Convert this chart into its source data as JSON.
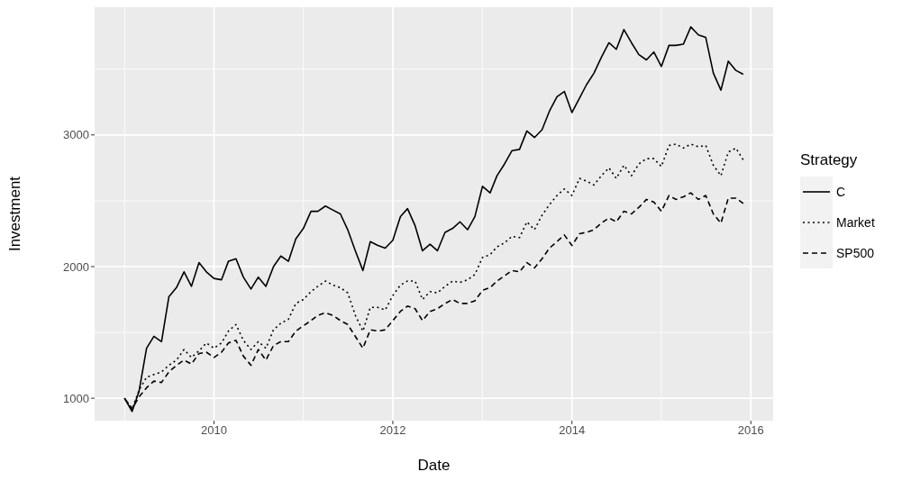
{
  "chart_data": {
    "type": "line",
    "xlabel": "Date",
    "ylabel": "Investment",
    "legend_title": "Strategy",
    "legend": "right",
    "grid": true,
    "xlim": [
      "2008-09",
      "2016-04"
    ],
    "ylim": [
      830,
      3970
    ],
    "xticks": [
      "2010",
      "2012",
      "2014",
      "2016"
    ],
    "yticks": [
      1000,
      2000,
      3000
    ],
    "x": [
      "2009-01",
      "2009-02",
      "2009-03",
      "2009-04",
      "2009-05",
      "2009-06",
      "2009-07",
      "2009-08",
      "2009-09",
      "2009-10",
      "2009-11",
      "2009-12",
      "2010-01",
      "2010-02",
      "2010-03",
      "2010-04",
      "2010-05",
      "2010-06",
      "2010-07",
      "2010-08",
      "2010-09",
      "2010-10",
      "2010-11",
      "2010-12",
      "2011-01",
      "2011-02",
      "2011-03",
      "2011-04",
      "2011-05",
      "2011-06",
      "2011-07",
      "2011-08",
      "2011-09",
      "2011-10",
      "2011-11",
      "2011-12",
      "2012-01",
      "2012-02",
      "2012-03",
      "2012-04",
      "2012-05",
      "2012-06",
      "2012-07",
      "2012-08",
      "2012-09",
      "2012-10",
      "2012-11",
      "2012-12",
      "2013-01",
      "2013-02",
      "2013-03",
      "2013-04",
      "2013-05",
      "2013-06",
      "2013-07",
      "2013-08",
      "2013-09",
      "2013-10",
      "2013-11",
      "2013-12",
      "2014-01",
      "2014-02",
      "2014-03",
      "2014-04",
      "2014-05",
      "2014-06",
      "2014-07",
      "2014-08",
      "2014-09",
      "2014-10",
      "2014-11",
      "2014-12",
      "2015-01",
      "2015-02",
      "2015-03",
      "2015-04",
      "2015-05",
      "2015-06",
      "2015-07",
      "2015-08",
      "2015-09",
      "2015-10",
      "2015-11",
      "2015-12"
    ],
    "series": [
      {
        "name": "C",
        "color": "#000000",
        "line_style": "solid",
        "values": [
          1000,
          900,
          1050,
          1380,
          1470,
          1430,
          1770,
          1840,
          1960,
          1850,
          2030,
          1960,
          1910,
          1900,
          2040,
          2060,
          1920,
          1830,
          1920,
          1850,
          2000,
          2080,
          2040,
          2210,
          2290,
          2420,
          2420,
          2460,
          2430,
          2400,
          2280,
          2120,
          1970,
          2190,
          2160,
          2140,
          2200,
          2380,
          2440,
          2310,
          2120,
          2170,
          2120,
          2260,
          2290,
          2340,
          2280,
          2380,
          2610,
          2560,
          2690,
          2780,
          2880,
          2890,
          3030,
          2980,
          3040,
          3180,
          3290,
          3330,
          3170,
          3280,
          3380,
          3470,
          3590,
          3700,
          3650,
          3800,
          3700,
          3610,
          3570,
          3630,
          3520,
          3680,
          3680,
          3690,
          3820,
          3760,
          3740,
          3470,
          3340,
          3560,
          3490,
          3460
        ]
      },
      {
        "name": "Market",
        "color": "#000000",
        "line_style": "dotted",
        "values": [
          1000,
          920,
          1060,
          1160,
          1180,
          1200,
          1250,
          1290,
          1370,
          1310,
          1360,
          1420,
          1380,
          1420,
          1510,
          1560,
          1440,
          1370,
          1430,
          1380,
          1520,
          1570,
          1600,
          1720,
          1750,
          1810,
          1850,
          1890,
          1860,
          1840,
          1800,
          1630,
          1510,
          1690,
          1690,
          1670,
          1780,
          1860,
          1890,
          1890,
          1750,
          1810,
          1800,
          1850,
          1890,
          1880,
          1900,
          1940,
          2070,
          2090,
          2150,
          2180,
          2230,
          2220,
          2340,
          2280,
          2390,
          2470,
          2540,
          2590,
          2540,
          2670,
          2650,
          2620,
          2690,
          2750,
          2670,
          2770,
          2690,
          2780,
          2820,
          2820,
          2760,
          2920,
          2930,
          2900,
          2930,
          2910,
          2920,
          2770,
          2690,
          2870,
          2900,
          2810
        ]
      },
      {
        "name": "SP500",
        "color": "#000000",
        "line_style": "dashed",
        "values": [
          1000,
          920,
          1010,
          1080,
          1130,
          1120,
          1200,
          1250,
          1290,
          1260,
          1340,
          1350,
          1310,
          1350,
          1420,
          1440,
          1320,
          1250,
          1370,
          1290,
          1400,
          1430,
          1430,
          1510,
          1550,
          1590,
          1630,
          1650,
          1630,
          1590,
          1560,
          1470,
          1380,
          1520,
          1510,
          1520,
          1590,
          1660,
          1700,
          1680,
          1590,
          1660,
          1680,
          1720,
          1750,
          1720,
          1720,
          1740,
          1820,
          1840,
          1890,
          1930,
          1970,
          1960,
          2030,
          1990,
          2060,
          2140,
          2190,
          2240,
          2160,
          2250,
          2260,
          2280,
          2330,
          2370,
          2340,
          2420,
          2400,
          2450,
          2510,
          2490,
          2420,
          2540,
          2510,
          2530,
          2560,
          2510,
          2540,
          2400,
          2330,
          2520,
          2520,
          2480
        ]
      }
    ]
  }
}
